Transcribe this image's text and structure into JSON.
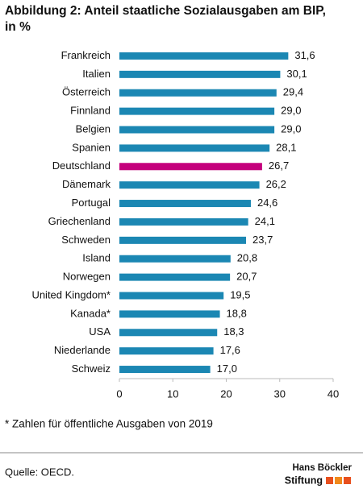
{
  "chart_data": {
    "type": "bar",
    "orientation": "horizontal",
    "title": [
      "Abbildung 2: Anteil staatliche Sozialausgaben am BIP,",
      "in %"
    ],
    "categories": [
      "Frankreich",
      "Italien",
      "Österreich",
      "Finnland",
      "Belgien",
      "Spanien",
      "Deutschland",
      "Dänemark",
      "Portugal",
      "Griechenland",
      "Schweden",
      "Island",
      "Norwegen",
      "United Kingdom*",
      "Kanada*",
      "USA",
      "Niederlande",
      "Schweiz"
    ],
    "values": [
      31.6,
      30.1,
      29.4,
      29.0,
      29.0,
      28.1,
      26.7,
      26.2,
      24.6,
      24.1,
      23.7,
      20.8,
      20.7,
      19.5,
      18.8,
      18.3,
      17.6,
      17.0
    ],
    "value_labels": [
      "31,6",
      "30,1",
      "29,4",
      "29,0",
      "29,0",
      "28,1",
      "26,7",
      "26,2",
      "24,6",
      "24,1",
      "23,7",
      "20,8",
      "20,7",
      "19,5",
      "18,8",
      "18,3",
      "17,6",
      "17,0"
    ],
    "colors": [
      "#1b87b3",
      "#1b87b3",
      "#1b87b3",
      "#1b87b3",
      "#1b87b3",
      "#1b87b3",
      "#c4007c",
      "#1b87b3",
      "#1b87b3",
      "#1b87b3",
      "#1b87b3",
      "#1b87b3",
      "#1b87b3",
      "#1b87b3",
      "#1b87b3",
      "#1b87b3",
      "#1b87b3",
      "#1b87b3"
    ],
    "xlim": [
      0,
      40
    ],
    "xticks": [
      0,
      10,
      20,
      30,
      40
    ],
    "grid": false,
    "footnote": "* Zahlen für öffentliche Ausgaben von 2019",
    "source": "Quelle: OECD.",
    "logo": [
      "Hans Böckler",
      "Stiftung"
    ]
  }
}
